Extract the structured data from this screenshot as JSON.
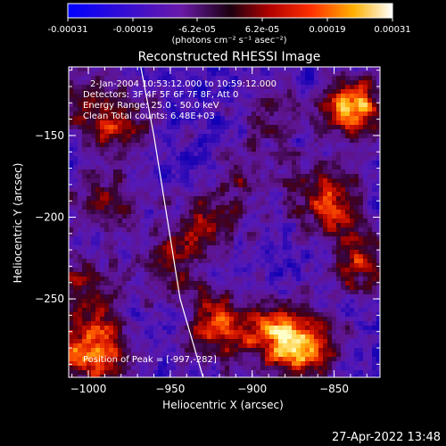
{
  "colorbar": {
    "ticks": [
      "-0.00031",
      "-0.00019",
      "-6.2e-05",
      "6.2e-05",
      "0.00019",
      "0.00031"
    ],
    "unit_label": "(photons cm⁻² s⁻¹ asec⁻²)",
    "range": [
      -0.00031,
      0.00031
    ]
  },
  "chart_data": {
    "type": "heatmap",
    "title": "Reconstructed RHESSI Image",
    "xlabel": "Heliocentric X (arcsec)",
    "ylabel": "Heliocentric Y (arcsec)",
    "xlim": [
      -1012,
      -822
    ],
    "ylim": [
      -298,
      -108
    ],
    "x_ticks": [
      -1000,
      -950,
      -900,
      -850
    ],
    "x_tick_labels": [
      "−1000",
      "−950",
      "−900",
      "−850"
    ],
    "y_ticks": [
      -150,
      -200,
      -250
    ],
    "y_tick_labels": [
      "−150",
      "−200",
      "−250"
    ],
    "info_lines": [
      "2-Jan-2004 10:53:12.000 to 10:59:12.000",
      "Detectors: 3F 4F 5F 6F 7F 8F, Att 0",
      "Energy Range: 25.0 - 50.0 keV",
      "Clean    Total counts: 6.48E+03"
    ],
    "peak_label": "Position of Peak = [-997,-282]",
    "peak_position": [
      -997,
      -282
    ],
    "limb_points": [
      [
        -968,
        -108
      ],
      [
        -960,
        -150
      ],
      [
        -952,
        -200
      ],
      [
        -944,
        -250
      ],
      [
        -930,
        -298
      ]
    ],
    "hot_spots": [
      {
        "x": -997,
        "y": -282,
        "amp": 1.0
      },
      {
        "x": -838,
        "y": -133,
        "amp": 0.95
      },
      {
        "x": -922,
        "y": -267,
        "amp": 0.85
      },
      {
        "x": -885,
        "y": -272,
        "amp": 0.8
      },
      {
        "x": -855,
        "y": -188,
        "amp": 0.8
      },
      {
        "x": -865,
        "y": -280,
        "amp": 0.75
      },
      {
        "x": -980,
        "y": -143,
        "amp": 0.6
      },
      {
        "x": -1000,
        "y": -243,
        "amp": 0.55
      },
      {
        "x": -835,
        "y": -228,
        "amp": 0.65
      },
      {
        "x": -950,
        "y": -228,
        "amp": 0.45
      },
      {
        "x": -990,
        "y": -190,
        "amp": 0.45
      },
      {
        "x": -930,
        "y": -205,
        "amp": 0.5
      },
      {
        "x": -905,
        "y": -180,
        "amp": 0.35
      },
      {
        "x": -1005,
        "y": -130,
        "amp": 0.45
      },
      {
        "x": -890,
        "y": -140,
        "amp": 0.4
      }
    ]
  },
  "footer": {
    "timestamp": "27-Apr-2022 13:48"
  }
}
